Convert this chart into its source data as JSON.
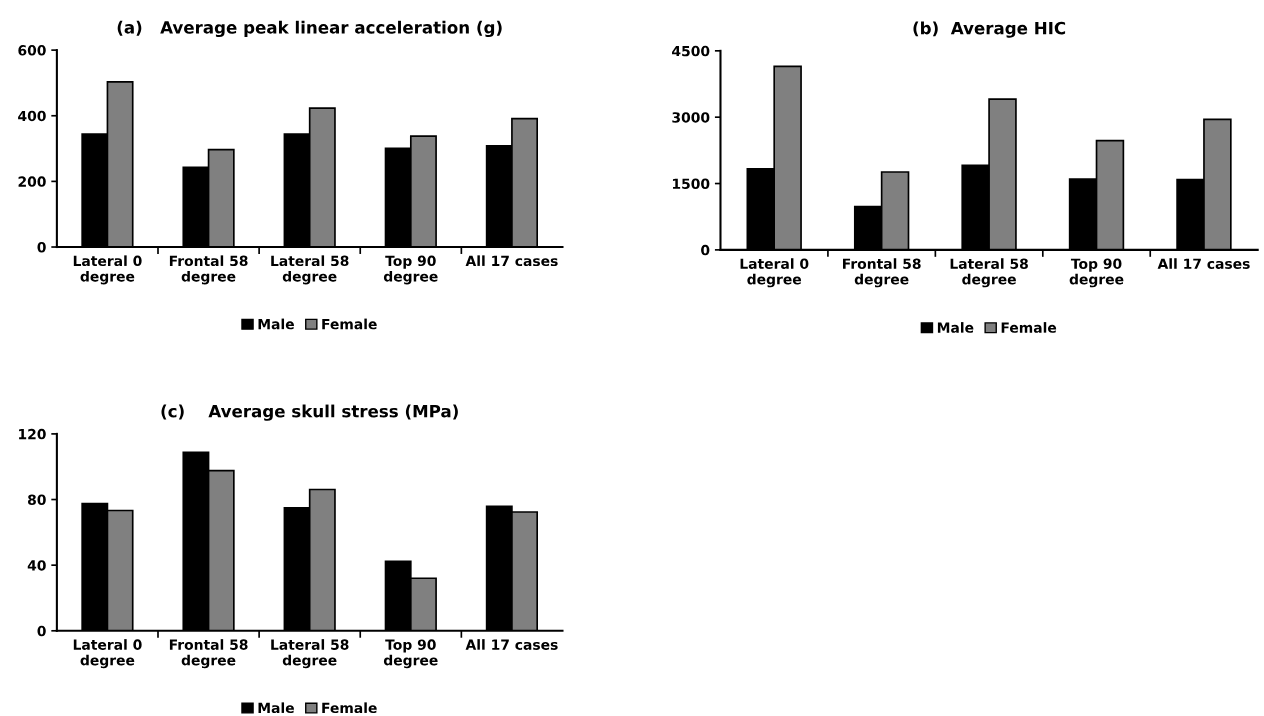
{
  "chart_data": [
    {
      "type": "bar",
      "title": "(a)   Average peak linear acceleration (g)",
      "categories": [
        "Lateral 0\ndegree",
        "Frontal 58\ndegree",
        "Lateral 58\ndegree",
        "Top 90\ndegree",
        "All 17 cases"
      ],
      "series": [
        {
          "name": "Male",
          "color": "#000000",
          "values": [
            344,
            243,
            344,
            301,
            308
          ]
        },
        {
          "name": "Female",
          "color": "#808080",
          "values": [
            503,
            297,
            423,
            338,
            391
          ]
        }
      ],
      "ylim": [
        0,
        600
      ],
      "yticks": [
        0,
        200,
        400,
        600
      ],
      "grid": false,
      "legend": "bottom"
    },
    {
      "type": "bar",
      "title": "(b)  Average HIC",
      "categories": [
        "Lateral 0\ndegree",
        "Frontal 58\ndegree",
        "Lateral 58\ndegree",
        "Top 90\ndegree",
        "All 17 cases"
      ],
      "series": [
        {
          "name": "Male",
          "color": "#000000",
          "values": [
            1830,
            980,
            1910,
            1600,
            1590
          ]
        },
        {
          "name": "Female",
          "color": "#808080",
          "values": [
            4150,
            1760,
            3410,
            2470,
            2950
          ]
        }
      ],
      "ylim": [
        0,
        4500
      ],
      "yticks": [
        0,
        1500,
        3000,
        4500
      ],
      "grid": false,
      "legend": "bottom"
    },
    {
      "type": "bar",
      "title": "(c)    Average skull stress (MPa)",
      "categories": [
        "Lateral 0\ndegree",
        "Frontal 58\ndegree",
        "Lateral 58\ndegree",
        "Top 90\ndegree",
        "All 17 cases"
      ],
      "series": [
        {
          "name": "Male",
          "color": "#000000",
          "values": [
            77.6,
            108.7,
            75.0,
            42.4,
            75.9
          ]
        },
        {
          "name": "Female",
          "color": "#808080",
          "values": [
            73.3,
            97.6,
            86.1,
            32.0,
            72.4
          ]
        }
      ],
      "ylim": [
        0,
        120
      ],
      "yticks": [
        0,
        40,
        80,
        120
      ],
      "grid": false,
      "legend": "bottom"
    }
  ]
}
